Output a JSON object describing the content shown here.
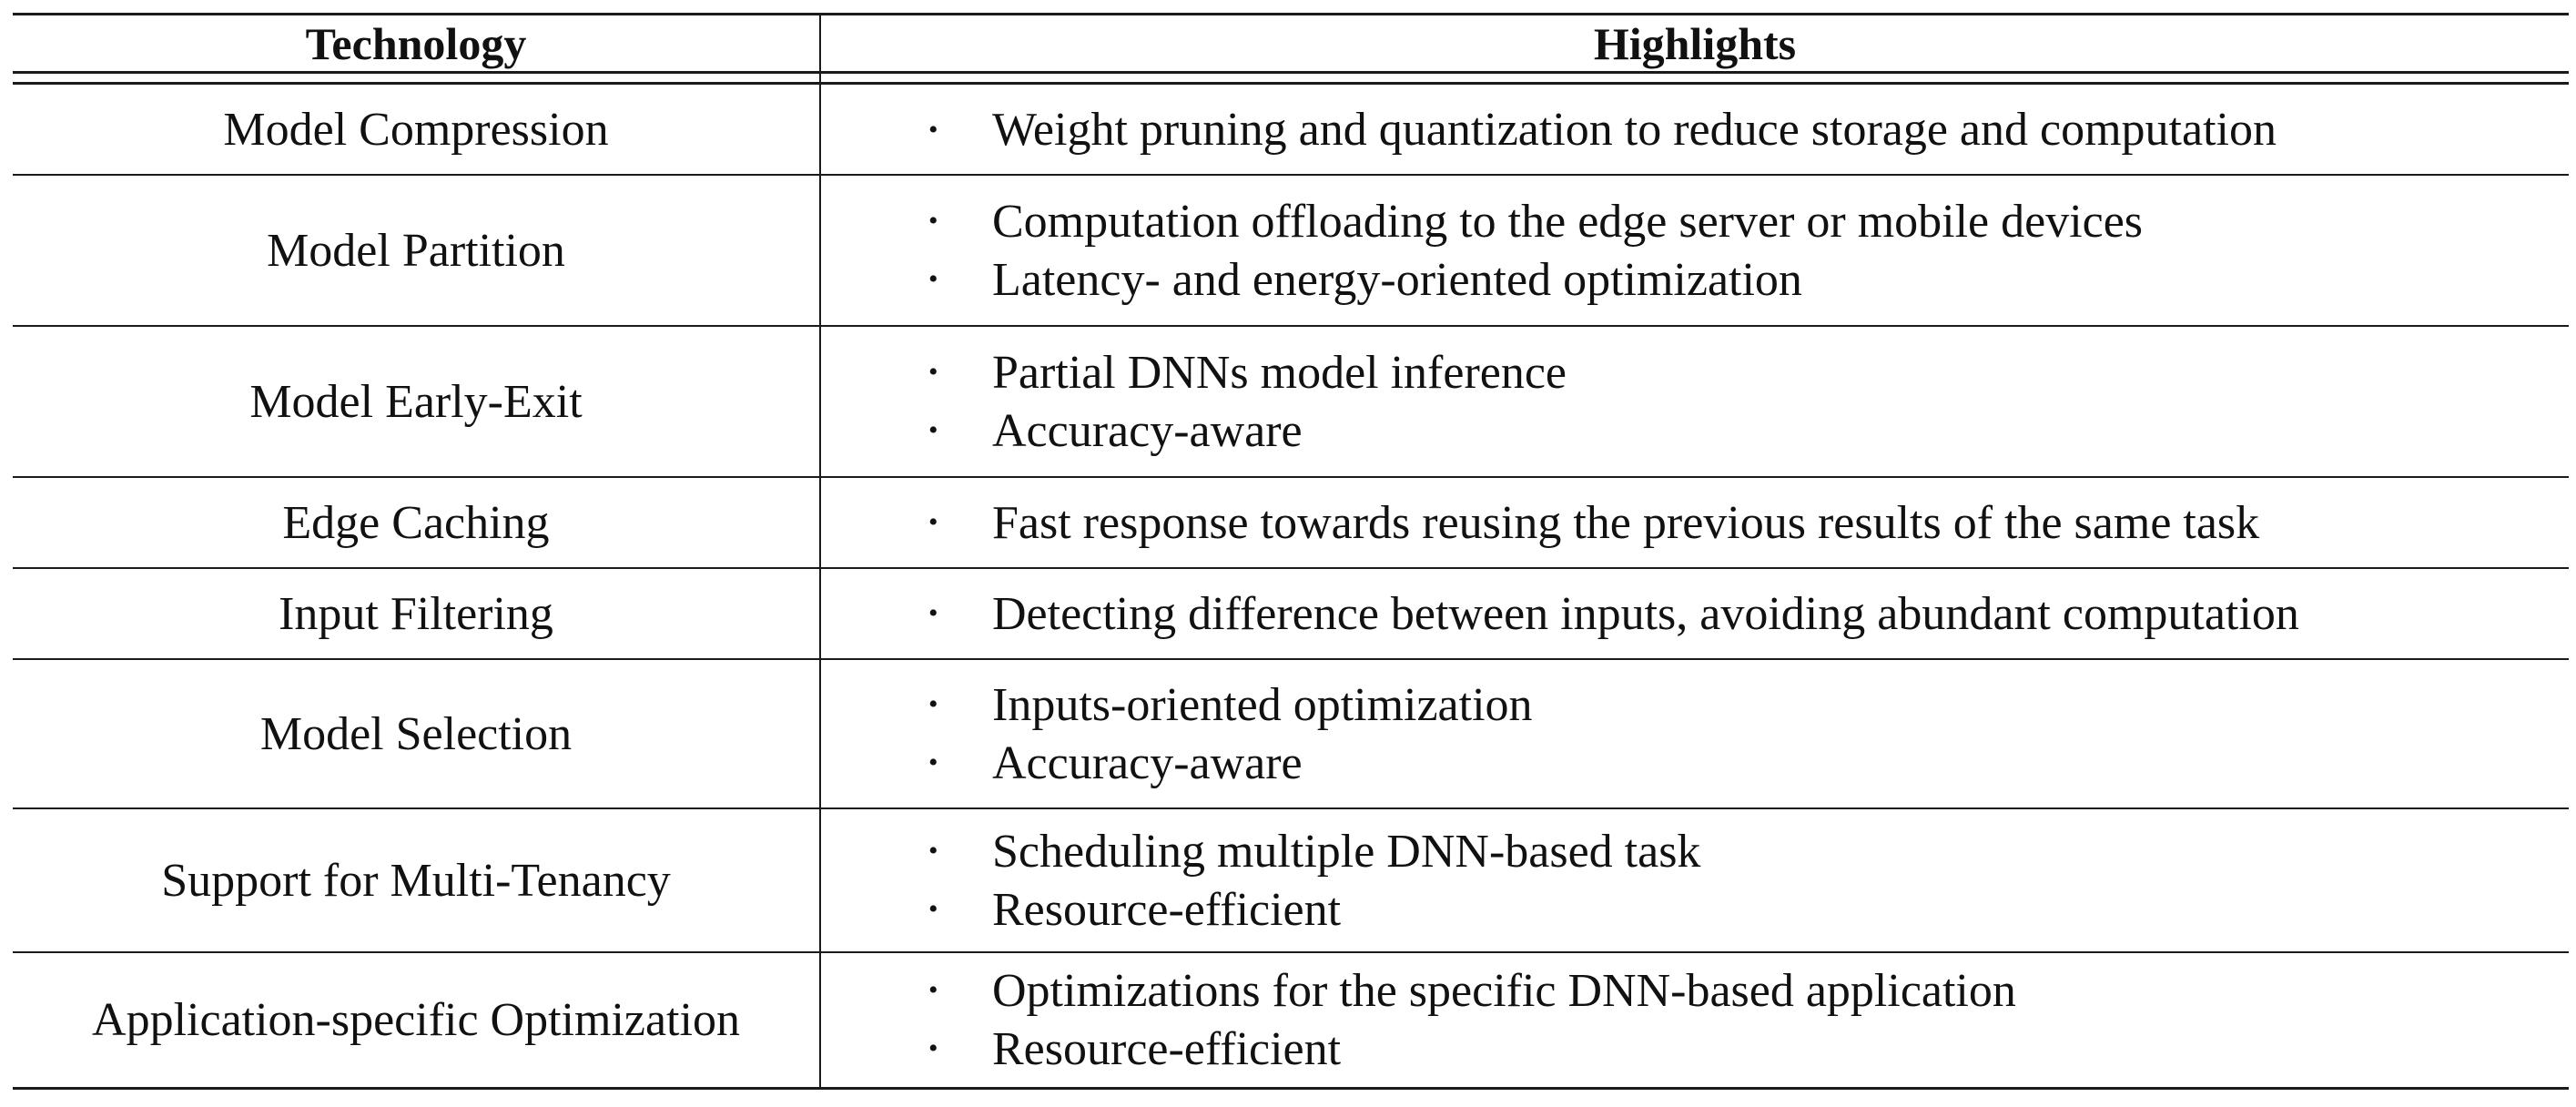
{
  "table": {
    "header": {
      "technology": "Technology",
      "highlights": "Highlights"
    },
    "bullet_glyph": "•",
    "rows": [
      {
        "technology": "Model Compression",
        "highlights": [
          "Weight pruning and quantization to reduce storage and computation"
        ]
      },
      {
        "technology": "Model Partition",
        "highlights": [
          "Computation offloading to the edge server or mobile devices",
          "Latency- and energy-oriented optimization"
        ]
      },
      {
        "technology": "Model Early-Exit",
        "highlights": [
          "Partial DNNs model inference",
          "Accuracy-aware"
        ]
      },
      {
        "technology": "Edge Caching",
        "highlights": [
          "Fast response towards reusing the previous results of the same task"
        ]
      },
      {
        "technology": "Input Filtering",
        "highlights": [
          "Detecting difference between inputs, avoiding abundant computation"
        ]
      },
      {
        "technology": "Model Selection",
        "highlights": [
          "Inputs-oriented optimization",
          "Accuracy-aware"
        ]
      },
      {
        "technology": "Support for Multi-Tenancy",
        "highlights": [
          "Scheduling multiple DNN-based task",
          "Resource-efficient"
        ]
      },
      {
        "technology": "Application-specific Optimization",
        "highlights": [
          "Optimizations for the specific DNN-based application",
          "Resource-efficient"
        ]
      }
    ]
  }
}
